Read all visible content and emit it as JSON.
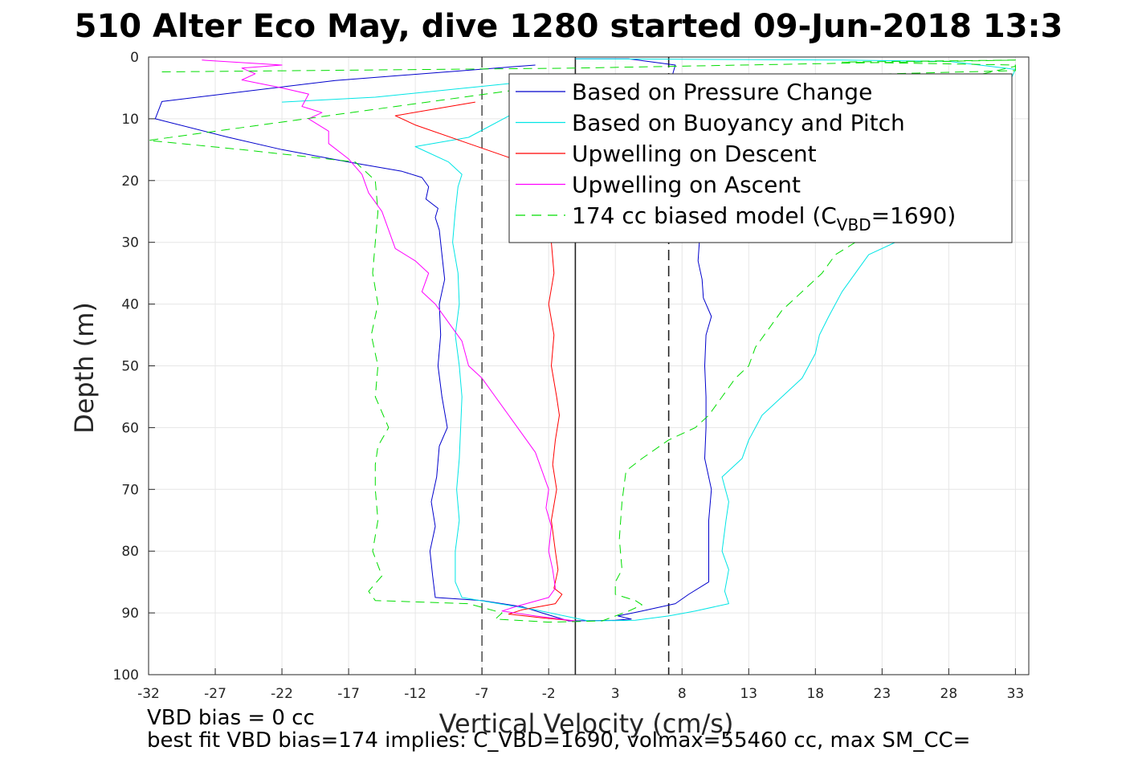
{
  "chart_data": {
    "type": "line",
    "title": "510 Alter Eco May, dive 1280 started 09-Jun-2018 13:3",
    "xlabel": "Vertical Velocity (cm/s)",
    "ylabel": "Depth (m)",
    "xlim": [
      -32,
      34
    ],
    "ylim": [
      0,
      100
    ],
    "y_reversed": true,
    "grid": true,
    "legend_position": "top-right",
    "xticks": [
      "-32",
      "-27",
      "-22",
      "-17",
      "-12",
      "-7",
      "-2",
      "3",
      "8",
      "13",
      "18",
      "23",
      "28",
      "33"
    ],
    "yticks": [
      "0",
      "10",
      "20",
      "30",
      "40",
      "50",
      "60",
      "70",
      "80",
      "90",
      "100"
    ],
    "vertical_lines": [
      {
        "x": -7,
        "style": "dashed",
        "color": "#555555"
      },
      {
        "x": 0,
        "style": "solid",
        "color": "#222222"
      },
      {
        "x": 7,
        "style": "dashed",
        "color": "#222222"
      }
    ],
    "notes": [
      "VBD bias = 0 cc",
      "best fit VBD bias=174 implies: C_VBD=1690, volmax=55460 cc, max SM_CC="
    ],
    "series": [
      {
        "name": "Based on Pressure Change",
        "color": "#0000cc",
        "style": "solid",
        "points": [
          [
            -3,
            1.3
          ],
          [
            -18,
            3.8
          ],
          [
            -31,
            7.2
          ],
          [
            -31.5,
            10
          ],
          [
            -26,
            13
          ],
          [
            -22,
            15
          ],
          [
            -17,
            17
          ],
          [
            -13,
            18.5
          ],
          [
            -11.5,
            19.5
          ],
          [
            -11,
            21
          ],
          [
            -11.2,
            23
          ],
          [
            -10.3,
            24.5
          ],
          [
            -10.5,
            26
          ],
          [
            -10.2,
            28
          ],
          [
            -10,
            32
          ],
          [
            -9.8,
            36
          ],
          [
            -10,
            38
          ],
          [
            -10.2,
            40
          ],
          [
            -10.1,
            45
          ],
          [
            -10.3,
            50
          ],
          [
            -10,
            55
          ],
          [
            -9.6,
            60
          ],
          [
            -10.2,
            63
          ],
          [
            -10.4,
            68
          ],
          [
            -10.8,
            72
          ],
          [
            -10.5,
            76
          ],
          [
            -10.9,
            80
          ],
          [
            -10.7,
            84
          ],
          [
            -10.5,
            87.5
          ],
          [
            -7,
            88
          ],
          [
            -4,
            89
          ],
          [
            -2.5,
            90
          ],
          [
            -0.5,
            91.3
          ],
          [
            3,
            91.2
          ],
          [
            4.2,
            91
          ],
          [
            3.2,
            90.5
          ],
          [
            5,
            89.7
          ],
          [
            7.5,
            88.5
          ],
          [
            8.5,
            87
          ],
          [
            10,
            85
          ],
          [
            10,
            80
          ],
          [
            10,
            75
          ],
          [
            10.2,
            70
          ],
          [
            9.7,
            65
          ],
          [
            9.8,
            60
          ],
          [
            9.8,
            55
          ],
          [
            9.7,
            50
          ],
          [
            9.8,
            45
          ],
          [
            10.2,
            42
          ],
          [
            9.6,
            39
          ],
          [
            9.5,
            36
          ],
          [
            9.2,
            33
          ],
          [
            9.3,
            30
          ],
          [
            8.8,
            25
          ],
          [
            8.5,
            20
          ],
          [
            7.5,
            10
          ],
          [
            7,
            5
          ],
          [
            7.5,
            1.3
          ],
          [
            4,
            0.3
          ],
          [
            0,
            0.3
          ]
        ]
      },
      {
        "name": "Based on Buoyancy and Pitch",
        "color": "#00e5e5",
        "style": "solid",
        "points": [
          [
            -22,
            7.3
          ],
          [
            -15,
            6.5
          ],
          [
            -5,
            4.3
          ],
          [
            0,
            3.8
          ],
          [
            -8,
            13
          ],
          [
            -12,
            14.5
          ],
          [
            -9.5,
            17
          ],
          [
            -8.5,
            19
          ],
          [
            -8.8,
            21
          ],
          [
            -9,
            25
          ],
          [
            -9.2,
            30
          ],
          [
            -8.8,
            35
          ],
          [
            -8.7,
            40
          ],
          [
            -9,
            45
          ],
          [
            -8.7,
            50
          ],
          [
            -8.5,
            55
          ],
          [
            -8.6,
            60
          ],
          [
            -8.7,
            65
          ],
          [
            -8.9,
            70
          ],
          [
            -8.7,
            75
          ],
          [
            -9,
            80
          ],
          [
            -9,
            85
          ],
          [
            -8.5,
            87.5
          ],
          [
            -3,
            89.5
          ],
          [
            1,
            91.3
          ],
          [
            4.5,
            91.2
          ],
          [
            7,
            90.5
          ],
          [
            9,
            89.7
          ],
          [
            11.5,
            88.5
          ],
          [
            11.2,
            86.5
          ],
          [
            11.5,
            83
          ],
          [
            11,
            80
          ],
          [
            11.3,
            75
          ],
          [
            11.5,
            72
          ],
          [
            11,
            68
          ],
          [
            12.5,
            65
          ],
          [
            13,
            62
          ],
          [
            14,
            58
          ],
          [
            16,
            54
          ],
          [
            17,
            52
          ],
          [
            18,
            48
          ],
          [
            18.3,
            45
          ],
          [
            19,
            42
          ],
          [
            20,
            38
          ],
          [
            21,
            35
          ],
          [
            22,
            32
          ],
          [
            25,
            29
          ],
          [
            28,
            25
          ],
          [
            33,
            2
          ],
          [
            28,
            0.7
          ],
          [
            20,
            0.5
          ],
          [
            2,
            0.3
          ],
          [
            0,
            0.3
          ]
        ]
      },
      {
        "name": "Upwelling on Descent",
        "color": "#ff0000",
        "style": "solid",
        "points": [
          [
            -7.5,
            7.3
          ],
          [
            -13.5,
            9.5
          ],
          [
            -12,
            11
          ],
          [
            -8,
            14
          ],
          [
            -4,
            17
          ],
          [
            -2,
            18.5
          ],
          [
            -1.5,
            20
          ],
          [
            -1.5,
            25
          ],
          [
            -1.8,
            30
          ],
          [
            -1.6,
            35
          ],
          [
            -2,
            40
          ],
          [
            -1.6,
            45
          ],
          [
            -1.8,
            50
          ],
          [
            -1.4,
            55
          ],
          [
            -1.2,
            58
          ],
          [
            -1.5,
            62
          ],
          [
            -1.7,
            66
          ],
          [
            -1.4,
            70
          ],
          [
            -1.8,
            75
          ],
          [
            -1.5,
            80
          ],
          [
            -1.3,
            83
          ],
          [
            -1.6,
            86
          ],
          [
            -1,
            87
          ],
          [
            -1.5,
            88.5
          ],
          [
            -4,
            89.5
          ],
          [
            -5,
            90.2
          ],
          [
            -2.5,
            90.8
          ],
          [
            0,
            91.3
          ]
        ]
      },
      {
        "name": "Upwelling on Ascent",
        "color": "#ff00ff",
        "style": "solid",
        "points": [
          [
            -28,
            0.5
          ],
          [
            -22,
            1.3
          ],
          [
            -25,
            1.8
          ],
          [
            -24,
            2.7
          ],
          [
            -25,
            3.7
          ],
          [
            -22,
            5
          ],
          [
            -20,
            6
          ],
          [
            -20.5,
            8
          ],
          [
            -19,
            9
          ],
          [
            -20,
            10
          ],
          [
            -18.5,
            12
          ],
          [
            -18.5,
            14
          ],
          [
            -17,
            16.5
          ],
          [
            -16,
            19
          ],
          [
            -15.5,
            22
          ],
          [
            -14.5,
            25
          ],
          [
            -14,
            28
          ],
          [
            -13.5,
            31
          ],
          [
            -12,
            33
          ],
          [
            -11,
            35
          ],
          [
            -11.5,
            38
          ],
          [
            -10.5,
            40
          ],
          [
            -9.5,
            43
          ],
          [
            -8.5,
            46
          ],
          [
            -8,
            50
          ],
          [
            -7,
            52
          ],
          [
            -6,
            55
          ],
          [
            -5,
            58
          ],
          [
            -4,
            61
          ],
          [
            -3,
            64
          ],
          [
            -2.5,
            67
          ],
          [
            -2,
            70
          ],
          [
            -2.2,
            73
          ],
          [
            -1.8,
            76
          ],
          [
            -2,
            80
          ],
          [
            -1.7,
            83
          ],
          [
            -1.5,
            86
          ],
          [
            -2,
            87.5
          ],
          [
            -4.5,
            89
          ],
          [
            -5.5,
            89.7
          ],
          [
            -3,
            90.5
          ],
          [
            0,
            91.3
          ]
        ]
      },
      {
        "name": "174 cc biased model (C",
        "name_sub": "VBD",
        "name_tail": "=1690)",
        "color": "#00dd00",
        "style": "dashed",
        "points": [
          [
            -31,
            2.4
          ],
          [
            0,
            1.8
          ],
          [
            33,
            0.5
          ],
          [
            20,
            0.8
          ],
          [
            33,
            1.3
          ],
          [
            33,
            2.2
          ],
          [
            0,
            4
          ],
          [
            -32,
            13.5
          ],
          [
            -25,
            15
          ],
          [
            -16.5,
            17
          ],
          [
            -15,
            20
          ],
          [
            -14.8,
            25
          ],
          [
            -15,
            30
          ],
          [
            -15.2,
            35
          ],
          [
            -14.8,
            40
          ],
          [
            -15.3,
            45
          ],
          [
            -14.8,
            50
          ],
          [
            -15,
            55
          ],
          [
            -14,
            60
          ],
          [
            -14.8,
            63
          ],
          [
            -15,
            66
          ],
          [
            -15,
            70
          ],
          [
            -14.8,
            75
          ],
          [
            -15.2,
            80
          ],
          [
            -14.5,
            84
          ],
          [
            -15.5,
            86.5
          ],
          [
            -15,
            88
          ],
          [
            -8,
            88.5
          ],
          [
            -5.5,
            90
          ],
          [
            -6,
            91
          ],
          [
            -2,
            91.5
          ],
          [
            2,
            91.3
          ],
          [
            4,
            89.7
          ],
          [
            5,
            88.7
          ],
          [
            4.5,
            88
          ],
          [
            3,
            87
          ],
          [
            3,
            85
          ],
          [
            3.5,
            83
          ],
          [
            3.3,
            78
          ],
          [
            3.5,
            72
          ],
          [
            3.8,
            67
          ],
          [
            5,
            65
          ],
          [
            7,
            62
          ],
          [
            9,
            60
          ],
          [
            10,
            58
          ],
          [
            11,
            55
          ],
          [
            12,
            52
          ],
          [
            13,
            50
          ],
          [
            13.5,
            47
          ],
          [
            14.5,
            44
          ],
          [
            15.5,
            41
          ],
          [
            16.5,
            39
          ],
          [
            17.5,
            37
          ],
          [
            18.5,
            35
          ],
          [
            19.5,
            32
          ],
          [
            21,
            30
          ],
          [
            22,
            26
          ],
          [
            23,
            22
          ],
          [
            23,
            20
          ],
          [
            28,
            4
          ],
          [
            33,
            1.5
          ]
        ]
      }
    ]
  }
}
